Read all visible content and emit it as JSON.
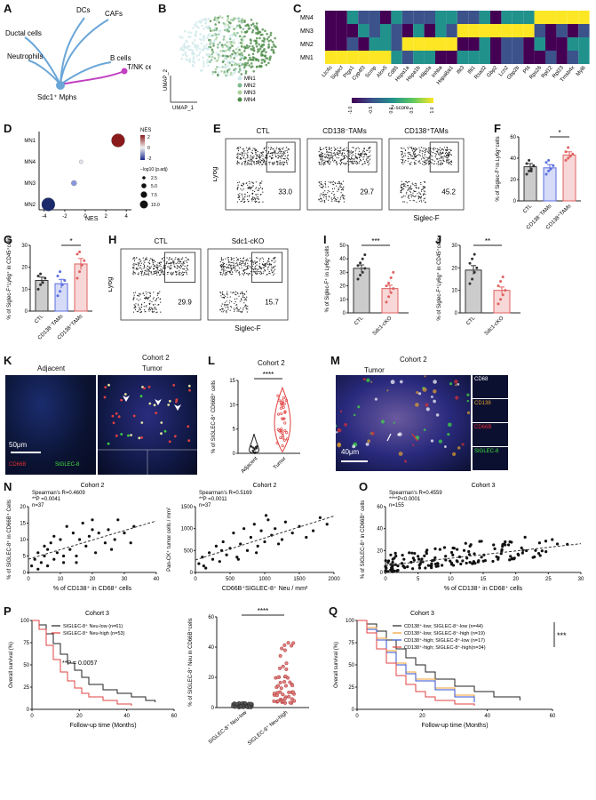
{
  "panels": {
    "A": {
      "letter": "A",
      "center": "Sdc1⁺ Mphs",
      "targets": [
        {
          "label": "DCs",
          "color": "#6aa6d8"
        },
        {
          "label": "CAFs",
          "color": "#6aa6d8"
        },
        {
          "label": "Ductal cells",
          "color": "#6aa6d8"
        },
        {
          "label": "Neutrophils",
          "color": "#6aa6d8"
        },
        {
          "label": "B cells",
          "color": "#6aa6d8"
        },
        {
          "label": "T/NK cells",
          "color": "#c040c0"
        }
      ]
    },
    "B": {
      "letter": "B",
      "xlabel": "UMAP_1",
      "ylabel": "UMAP_2",
      "legend": [
        {
          "label": "MN1",
          "color": "#cfe8ea"
        },
        {
          "label": "MN2",
          "color": "#7db88f"
        },
        {
          "label": "MN3",
          "color": "#a9d2a0"
        },
        {
          "label": "MN4",
          "color": "#4f8d4a"
        }
      ]
    },
    "C": {
      "letter": "C",
      "rows": [
        "MN4",
        "MN3",
        "MN2",
        "MN1"
      ],
      "genes": [
        "Ltc4s",
        "Siglecf",
        "Ptgs1",
        "Cyp4f3",
        "Scmp",
        "Alox5",
        "Cd85",
        "Hspa1a",
        "Hspa1b",
        "Hilpda",
        "Inhba",
        "Hspa8ai1",
        "Ifit3",
        "Ifit1",
        "Rsad2",
        "Gbp2",
        "Lcn2",
        "Gbp2b",
        "Pf4",
        "Rps26",
        "Rpl12",
        "Rpl23",
        "Tmsb4x",
        "Myl6"
      ],
      "legend_title": "Z-score",
      "legend_ticks": [
        "-1.0",
        "-0.5",
        "0.0",
        "0.5",
        "1.0"
      ]
    },
    "D": {
      "letter": "D",
      "xlabel": "NES",
      "color_title": "NES",
      "color_ticks": [
        "2",
        "0",
        "-2"
      ],
      "size_title": "−log10 (p.adj)",
      "size_ticks": [
        "2.5",
        "5.0",
        "7.5",
        "10.0"
      ]
    },
    "E": {
      "letter": "E",
      "ylabel": "Ly6g",
      "xlabel": "Siglec-F",
      "plots": [
        {
          "title": "CTL",
          "value": "33.0"
        },
        {
          "title": "CD138⁻TAMs",
          "value": "29.7"
        },
        {
          "title": "CD138⁺TAMs",
          "value": "45.2"
        }
      ]
    },
    "F": {
      "letter": "F",
      "ylabel": "% of Siglec-F⁺in Ly6g⁺cells",
      "sig": "*"
    },
    "G": {
      "letter": "G",
      "ylabel": "% of Siglec-F⁺Ly6g⁺ in CD45⁺cells",
      "sig": "*"
    },
    "H": {
      "letter": "H",
      "ylabel": "Ly6g",
      "xlabel": "Siglec-F",
      "plots": [
        {
          "title": "CTL",
          "value": "29.9"
        },
        {
          "title": "Sdc1-cKO",
          "value": "15.7"
        }
      ]
    },
    "I": {
      "letter": "I",
      "ylabel": "% of Siglec-F⁺ in Ly6g⁺cells",
      "sig": "***"
    },
    "J": {
      "letter": "J",
      "ylabel": "% of Siglec-F⁺Ly6g⁺ in CD45⁺cells",
      "sig": "**"
    },
    "K": {
      "letter": "K",
      "cohort": "Cohort 2",
      "left": "Adjacent",
      "right": "Tumor",
      "scale": "50μm",
      "stain1": "CD66B",
      "stain2": "SIGLEC-8"
    },
    "L": {
      "letter": "L",
      "cohort": "Cohort 2",
      "ylabel": "% of SIGLEC-8⁺ CD66B⁺ cells",
      "sig": "****"
    },
    "M": {
      "letter": "M",
      "cohort": "Cohort 2",
      "region": "Tumor",
      "scale": "40μm",
      "stains": [
        {
          "label": "CD68",
          "color": "#ffffff"
        },
        {
          "label": "CD138",
          "color": "#e0a030"
        },
        {
          "label": "CD66B",
          "color": "#e03030"
        },
        {
          "label": "SIGLEC-8",
          "color": "#40e040"
        }
      ]
    },
    "N": {
      "letter": "N",
      "left": {
        "cohort": "Cohort 2",
        "stat1": "Spearman's R=0.4609",
        "stat2": "**P =0.0041",
        "stat3": "n=37",
        "xlabel": "% of CD138⁺ in CD68⁺ cells",
        "ylabel": "% of SIGLEC-8⁺ in CD66B⁺ Cells"
      },
      "right": {
        "cohort": "Cohort 2",
        "stat1": "Spearman's R=0.5169",
        "stat2": "**P =0.0011",
        "stat3": "n=37",
        "xlabel": "CD66B⁺SIGLEC-8⁺ Neu / mm²",
        "ylabel": "Pan-CK⁺ tumor cells / mm²"
      }
    },
    "O": {
      "letter": "O",
      "cohort": "Cohort 3",
      "stat1": "Spearman's R=0.4559",
      "stat2": "****P<0.0001",
      "stat3": "n=155",
      "xlabel": "% of CD138⁺ in CD68⁺ cells",
      "ylabel": "% of SIGLEC-8⁺ in CD66B⁺ cells"
    },
    "P": {
      "letter": "P",
      "cohort": "Cohort 3",
      "legend": [
        {
          "label": "SIGLEC-8⁺ Neu-low (n=61)",
          "color": "#222222"
        },
        {
          "label": "SIGLEC-8⁺ Neu-high (n=53)",
          "color": "#e04040"
        }
      ],
      "pval": "**P = 0.0057",
      "xlabel": "Follow-up time (Months)",
      "ylabel": "Overall survival (%)",
      "bar_ylabel": "% of SIGLEC-8⁺ Neu in CD66B⁺cells",
      "bar_sig": "****"
    },
    "Q": {
      "letter": "Q",
      "cohort": "Cohort 3",
      "legend": [
        {
          "label": "CD138⁺-low; SIGLEC-8⁺-low (n=44)",
          "color": "#222222"
        },
        {
          "label": "CD138⁺-low; SIGLEC-8⁺-high (n=19)",
          "color": "#f0a030"
        },
        {
          "label": "CD138⁺-high; SIGLEC-8⁺-low (n=17)",
          "color": "#3050d0"
        },
        {
          "label": "CD138⁺-high; SIGLEC-8⁺-high(n=34)",
          "color": "#e04040"
        }
      ],
      "sig": "***",
      "xlabel": "Follow-up time (Months)",
      "ylabel": "Overall survival (%)"
    }
  },
  "chart_data": [
    {
      "id": "D",
      "type": "scatter",
      "xlabel": "NES",
      "xlim": [
        -4.5,
        4.5
      ],
      "categories": [
        "MN1",
        "MN4",
        "MN3",
        "MN2"
      ],
      "points": [
        {
          "category": "MN1",
          "x": 3.2,
          "nes": 2.8,
          "size": 10.0
        },
        {
          "category": "MN4",
          "x": -0.4,
          "nes": 0.1,
          "size": 1.0
        },
        {
          "category": "MN3",
          "x": -1.1,
          "nes": -0.8,
          "size": 2.5
        },
        {
          "category": "MN2",
          "x": -3.6,
          "nes": -2.8,
          "size": 10.0
        }
      ]
    },
    {
      "id": "F",
      "type": "bar",
      "ylim": [
        0,
        60
      ],
      "yticks": [
        0,
        20,
        40,
        60
      ],
      "categories": [
        "CTL",
        "CD138⁻TAMs",
        "CD138⁺TAMs"
      ],
      "values": [
        32,
        31,
        43
      ],
      "errors": [
        3,
        3,
        3
      ],
      "colors": [
        "#333333",
        "#5b6ee0",
        "#e06060"
      ],
      "points": [
        [
          25,
          28,
          30,
          33,
          35,
          38,
          28
        ],
        [
          25,
          28,
          30,
          33,
          36,
          38
        ],
        [
          38,
          40,
          42,
          44,
          46,
          50
        ]
      ]
    },
    {
      "id": "G",
      "type": "bar",
      "ylim": [
        0,
        30
      ],
      "yticks": [
        0,
        10,
        20,
        30
      ],
      "categories": [
        "CTL",
        "CD138⁻TAMs",
        "CD138⁺TAMs"
      ],
      "values": [
        14,
        12.5,
        21.5
      ],
      "errors": [
        1.5,
        2,
        2.5
      ],
      "colors": [
        "#333333",
        "#5b6ee0",
        "#e06060"
      ],
      "points": [
        [
          10,
          12,
          13,
          15,
          16,
          17
        ],
        [
          7,
          9,
          12,
          14,
          16,
          18
        ],
        [
          15,
          18,
          21,
          23,
          26,
          27
        ]
      ]
    },
    {
      "id": "I",
      "type": "bar",
      "ylim": [
        0,
        50
      ],
      "yticks": [
        0,
        10,
        20,
        30,
        40,
        50
      ],
      "categories": [
        "CTL",
        "Sdc1-cKO"
      ],
      "values": [
        33,
        18
      ],
      "errors": [
        2.5,
        2.5
      ],
      "colors": [
        "#333333",
        "#e06060"
      ],
      "points": [
        [
          25,
          28,
          30,
          33,
          35,
          37,
          40,
          43
        ],
        [
          8,
          12,
          15,
          18,
          20,
          22,
          26,
          30
        ]
      ]
    },
    {
      "id": "J",
      "type": "bar",
      "ylim": [
        0,
        30
      ],
      "yticks": [
        0,
        10,
        20,
        30
      ],
      "categories": [
        "CTL",
        "Sdc1-cKO"
      ],
      "values": [
        19,
        10
      ],
      "errors": [
        2,
        1.5
      ],
      "colors": [
        "#333333",
        "#e06060"
      ],
      "points": [
        [
          13,
          15,
          18,
          20,
          22,
          24,
          26
        ],
        [
          4,
          6,
          8,
          10,
          12,
          14,
          16
        ]
      ]
    },
    {
      "id": "L",
      "type": "violin",
      "ylim": [
        0,
        15
      ],
      "yticks": [
        0,
        5,
        10,
        15
      ],
      "categories": [
        "Adjacent",
        "Tumor"
      ],
      "medians": [
        0.2,
        5
      ]
    },
    {
      "id": "N-left",
      "type": "scatter",
      "xlim": [
        0,
        40
      ],
      "ylim": [
        0,
        20
      ],
      "xticks": [
        0,
        10,
        20,
        30,
        40
      ],
      "yticks": [
        0,
        5,
        10,
        15,
        20
      ],
      "x": [
        1,
        2,
        3,
        3,
        4,
        5,
        5,
        6,
        7,
        8,
        8,
        9,
        10,
        11,
        12,
        13,
        14,
        15,
        16,
        17,
        18,
        19,
        20,
        21,
        22,
        24,
        25,
        26,
        27,
        28,
        30,
        32,
        33,
        6,
        11,
        15,
        20
      ],
      "y": [
        2,
        4,
        1,
        6,
        3,
        5,
        8,
        2,
        9,
        4,
        11,
        6,
        10,
        3,
        14,
        7,
        12,
        5,
        10,
        15,
        8,
        11,
        16,
        6,
        12,
        9,
        13,
        7,
        10,
        16,
        12,
        9,
        14,
        7,
        5,
        3,
        13
      ]
    },
    {
      "id": "N-right",
      "type": "scatter",
      "xlim": [
        0,
        2000
      ],
      "ylim": [
        0,
        1500
      ],
      "xticks": [
        0,
        500,
        1000,
        1500,
        2000
      ],
      "yticks": [
        0,
        500,
        1000,
        1500
      ],
      "x": [
        50,
        100,
        150,
        200,
        250,
        300,
        350,
        400,
        450,
        500,
        550,
        600,
        650,
        700,
        750,
        800,
        850,
        900,
        950,
        1000,
        1050,
        1100,
        1150,
        1200,
        1300,
        1400,
        1500,
        1600,
        1700,
        1800,
        1900,
        120,
        380,
        620,
        880,
        1020,
        1250
      ],
      "y": [
        200,
        350,
        100,
        450,
        300,
        600,
        250,
        700,
        400,
        550,
        900,
        350,
        650,
        1000,
        500,
        800,
        1100,
        600,
        950,
        700,
        1200,
        850,
        1000,
        650,
        1150,
        900,
        1050,
        800,
        950,
        1250,
        1100,
        150,
        500,
        300,
        450,
        1300,
        750
      ]
    },
    {
      "id": "O",
      "type": "scatter",
      "xlim": [
        0,
        30
      ],
      "ylim": [
        0,
        60
      ],
      "xticks": [
        0,
        5,
        10,
        15,
        20,
        25,
        30
      ],
      "yticks": [
        0,
        20,
        40,
        60
      ]
    },
    {
      "id": "P-km",
      "type": "line",
      "xlim": [
        0,
        60
      ],
      "ylim": [
        0,
        100
      ],
      "xticks": [
        0,
        20,
        40,
        60
      ],
      "yticks": [
        0,
        25,
        50,
        75,
        100
      ],
      "series": [
        {
          "name": "SIGLEC-8⁺ Neu-low (n=61)",
          "color": "#222222",
          "x": [
            0,
            3,
            6,
            9,
            12,
            15,
            18,
            21,
            24,
            30,
            36,
            42,
            48,
            52
          ],
          "y": [
            100,
            95,
            85,
            74,
            62,
            52,
            44,
            36,
            28,
            22,
            18,
            14,
            10,
            8
          ]
        },
        {
          "name": "SIGLEC-8⁺ Neu-high (n=53)",
          "color": "#e04040",
          "x": [
            0,
            3,
            6,
            9,
            12,
            15,
            18,
            21,
            24,
            30,
            36,
            42
          ],
          "y": [
            100,
            90,
            72,
            56,
            42,
            32,
            24,
            18,
            14,
            10,
            6,
            4
          ]
        }
      ]
    },
    {
      "id": "P-dot",
      "type": "scatter",
      "ylim": [
        0,
        60
      ],
      "yticks": [
        0,
        20,
        40,
        60
      ],
      "categories": [
        "SIGLEC-8⁺ Neu-low",
        "SIGLEC-8⁺ Neu-high"
      ]
    },
    {
      "id": "Q",
      "type": "line",
      "xlim": [
        0,
        60
      ],
      "ylim": [
        0,
        100
      ],
      "xticks": [
        0,
        20,
        40,
        60
      ],
      "yticks": [
        0,
        25,
        50,
        75,
        100
      ],
      "series": [
        {
          "name": "CD138⁺-low; SIGLEC-8⁺-low (n=44)",
          "color": "#222222",
          "x": [
            0,
            3,
            6,
            9,
            12,
            15,
            18,
            21,
            24,
            30,
            36,
            42,
            50
          ],
          "y": [
            100,
            96,
            88,
            78,
            68,
            58,
            50,
            42,
            34,
            26,
            20,
            14,
            10
          ]
        },
        {
          "name": "CD138⁺-low; SIGLEC-8⁺-high (n=19)",
          "color": "#f0a030",
          "x": [
            0,
            3,
            6,
            9,
            12,
            15,
            18,
            24,
            30,
            36
          ],
          "y": [
            100,
            92,
            80,
            66,
            52,
            42,
            34,
            24,
            16,
            10
          ]
        },
        {
          "name": "CD138⁺-high; SIGLEC-8⁺-low (n=17)",
          "color": "#3050d0",
          "x": [
            0,
            3,
            6,
            9,
            12,
            15,
            18,
            24,
            30,
            36
          ],
          "y": [
            100,
            90,
            78,
            64,
            50,
            40,
            32,
            22,
            14,
            8
          ]
        },
        {
          "name": "CD138⁺-high; SIGLEC-8⁺-high(n=34)",
          "color": "#e04040",
          "x": [
            0,
            3,
            6,
            9,
            12,
            15,
            18,
            21,
            24,
            30,
            36
          ],
          "y": [
            100,
            86,
            68,
            52,
            38,
            28,
            20,
            14,
            10,
            6,
            4
          ]
        }
      ]
    }
  ]
}
